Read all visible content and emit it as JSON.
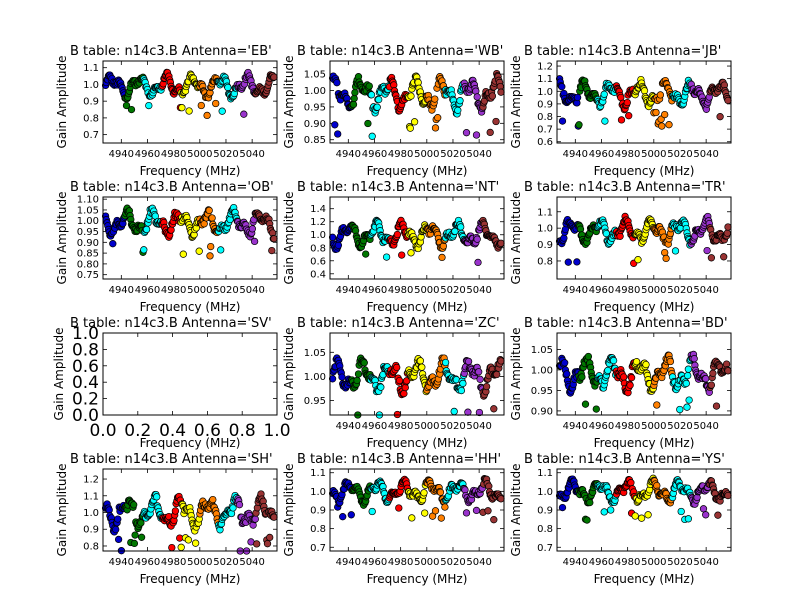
{
  "chart_data": [
    {
      "type": "scatter",
      "title": "B table: n14c3.B      Antenna='EB'",
      "xlabel": "Frequency (MHz)",
      "ylabel": "Gain Amplitude",
      "xlim": [
        4926,
        5059
      ],
      "ylim": [
        0.65,
        1.14
      ],
      "xticks": [
        "4940",
        "4960",
        "4980",
        "5000",
        "5020",
        "5040"
      ],
      "yticks": [
        "0.7",
        "0.8",
        "0.9",
        "1.0",
        "1.1"
      ],
      "empty": false,
      "amp": 0.08,
      "center": 0.99
    },
    {
      "type": "scatter",
      "title": "B table: n14c3.B      Antenna='WB'",
      "xlabel": "Frequency (MHz)",
      "ylabel": "Gain Amplitude",
      "xlim": [
        4926,
        5059
      ],
      "ylim": [
        0.84,
        1.09
      ],
      "xticks": [
        "4940",
        "4960",
        "4980",
        "5000",
        "5020",
        "5040"
      ],
      "yticks": [
        "0.85",
        "0.90",
        "0.95",
        "1.00",
        "1.05"
      ],
      "empty": false,
      "amp": 0.06,
      "center": 0.99
    },
    {
      "type": "scatter",
      "title": "B table: n14c3.B      Antenna='JB'",
      "xlabel": "Frequency (MHz)",
      "ylabel": "Gain Amplitude",
      "xlim": [
        4926,
        5059
      ],
      "ylim": [
        0.59,
        1.24
      ],
      "xticks": [
        "4940",
        "4960",
        "4980",
        "5000",
        "5020",
        "5040"
      ],
      "yticks": [
        "0.6",
        "0.7",
        "0.8",
        "0.9",
        "1.0",
        "1.1",
        "1.2"
      ],
      "empty": false,
      "amp": 0.12,
      "center": 0.98
    },
    {
      "type": "scatter",
      "title": "B table: n14c3.B      Antenna='OB'",
      "xlabel": "Frequency (MHz)",
      "ylabel": "Gain Amplitude",
      "xlim": [
        4926,
        5059
      ],
      "ylim": [
        0.73,
        1.11
      ],
      "xticks": [
        "4940",
        "4960",
        "4980",
        "5000",
        "5020",
        "5040"
      ],
      "yticks": [
        "0.75",
        "0.80",
        "0.85",
        "0.90",
        "0.95",
        "1.00",
        "1.05",
        "1.10"
      ],
      "empty": false,
      "amp": 0.07,
      "center": 0.99
    },
    {
      "type": "scatter",
      "title": "B table: n14c3.B      Antenna='NT'",
      "xlabel": "Frequency (MHz)",
      "ylabel": "Gain Amplitude",
      "xlim": [
        4926,
        5059
      ],
      "ylim": [
        0.32,
        1.58
      ],
      "xticks": [
        "4940",
        "4960",
        "4980",
        "5000",
        "5020",
        "5040"
      ],
      "yticks": [
        "0.4",
        "0.6",
        "0.8",
        "1.0",
        "1.2",
        "1.4"
      ],
      "empty": false,
      "amp": 0.22,
      "center": 1.0
    },
    {
      "type": "scatter",
      "title": "B table: n14c3.B      Antenna='TR'",
      "xlabel": "Frequency (MHz)",
      "ylabel": "Gain Amplitude",
      "xlim": [
        4926,
        5059
      ],
      "ylim": [
        0.69,
        1.19
      ],
      "xticks": [
        "4940",
        "4960",
        "4980",
        "5000",
        "5020",
        "5040"
      ],
      "yticks": [
        "0.8",
        "0.9",
        "1.0",
        "1.1"
      ],
      "empty": false,
      "amp": 0.09,
      "center": 0.98
    },
    {
      "type": "scatter",
      "title": "B table: n14c3.B      Antenna='SV'",
      "xlabel": "Frequency (MHz)",
      "ylabel": "Gain Amplitude",
      "xlim": [
        0,
        1
      ],
      "ylim": [
        0,
        1
      ],
      "xticks": [
        "0.0",
        "0.2",
        "0.4",
        "0.6",
        "0.8",
        "1.0"
      ],
      "yticks": [
        "0.0",
        "0.2",
        "0.4",
        "0.6",
        "0.8",
        "1.0"
      ],
      "empty": true
    },
    {
      "type": "scatter",
      "title": "B table: n14c3.B      Antenna='ZC'",
      "xlabel": "Frequency (MHz)",
      "ylabel": "Gain Amplitude",
      "xlim": [
        4926,
        5059
      ],
      "ylim": [
        0.92,
        1.09
      ],
      "xticks": [
        "4940",
        "4960",
        "4980",
        "5000",
        "5020",
        "5040"
      ],
      "yticks": [
        "0.95",
        "1.00",
        "1.05"
      ],
      "empty": false,
      "amp": 0.04,
      "center": 1.0
    },
    {
      "type": "scatter",
      "title": "B table: n14c3.B      Antenna='BD'",
      "xlabel": "Frequency (MHz)",
      "ylabel": "Gain Amplitude",
      "xlim": [
        4926,
        5059
      ],
      "ylim": [
        0.89,
        1.09
      ],
      "xticks": [
        "4940",
        "4960",
        "4980",
        "5000",
        "5020",
        "5040"
      ],
      "yticks": [
        "0.90",
        "0.95",
        "1.00",
        "1.05"
      ],
      "empty": false,
      "amp": 0.05,
      "center": 0.99
    },
    {
      "type": "scatter",
      "title": "B table: n14c3.B      Antenna='SH'",
      "xlabel": "Frequency (MHz)",
      "ylabel": "Gain Amplitude",
      "xlim": [
        4926,
        5059
      ],
      "ylim": [
        0.77,
        1.26
      ],
      "xticks": [
        "4940",
        "4960",
        "4980",
        "5000",
        "5020",
        "5040"
      ],
      "yticks": [
        "0.8",
        "0.9",
        "1.0",
        "1.1",
        "1.2"
      ],
      "empty": false,
      "amp": 0.11,
      "center": 1.0
    },
    {
      "type": "scatter",
      "title": "B table: n14c3.B      Antenna='HH'",
      "xlabel": "Frequency (MHz)",
      "ylabel": "Gain Amplitude",
      "xlim": [
        4926,
        5059
      ],
      "ylim": [
        0.68,
        1.12
      ],
      "xticks": [
        "4940",
        "4960",
        "4980",
        "5000",
        "5020",
        "5040"
      ],
      "yticks": [
        "0.7",
        "0.8",
        "0.9",
        "1.0",
        "1.1"
      ],
      "empty": false,
      "amp": 0.07,
      "center": 1.0
    },
    {
      "type": "scatter",
      "title": "B table: n14c3.B      Antenna='YS'",
      "xlabel": "Frequency (MHz)",
      "ylabel": "Gain Amplitude",
      "xlim": [
        4926,
        5059
      ],
      "ylim": [
        0.68,
        1.12
      ],
      "xticks": [
        "4940",
        "4960",
        "4980",
        "5000",
        "5020",
        "5040"
      ],
      "yticks": [
        "0.7",
        "0.8",
        "0.9",
        "1.0",
        "1.1"
      ],
      "empty": false,
      "amp": 0.07,
      "center": 1.0
    }
  ],
  "colors": {
    "segments": [
      "#0000cc",
      "#007700",
      "#00ffff",
      "#ff0000",
      "#ffff00",
      "#ff8000",
      "#00ffff",
      "#9933cc",
      "#993333"
    ],
    "background": "#ffffff",
    "axes": "#000000"
  }
}
